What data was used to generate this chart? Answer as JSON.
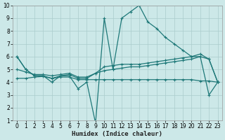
{
  "xlabel": "Humidex (Indice chaleur)",
  "bg_color": "#cce8e8",
  "grid_color": "#aacccc",
  "line_color": "#1e7878",
  "xlim": [
    -0.5,
    23.5
  ],
  "ylim": [
    1,
    10
  ],
  "xticks": [
    0,
    1,
    2,
    3,
    4,
    5,
    6,
    7,
    8,
    9,
    10,
    11,
    12,
    13,
    14,
    15,
    16,
    17,
    18,
    19,
    20,
    21,
    22,
    23
  ],
  "yticks": [
    1,
    2,
    3,
    4,
    5,
    6,
    7,
    8,
    9,
    10
  ],
  "line1_x": [
    0,
    1,
    2,
    3,
    4,
    5,
    6,
    7,
    8,
    9,
    10,
    11,
    12,
    13,
    14,
    15,
    16,
    17,
    18,
    19,
    20,
    21,
    22,
    23
  ],
  "line1_y": [
    6.0,
    5.0,
    4.5,
    4.5,
    4.0,
    4.5,
    4.5,
    3.5,
    4.0,
    0.8,
    9.0,
    5.0,
    9.0,
    9.5,
    10.0,
    8.7,
    8.2,
    7.5,
    7.0,
    6.5,
    6.0,
    6.0,
    3.0,
    4.0
  ],
  "line2_x": [
    0,
    1,
    2,
    3,
    4,
    5,
    6,
    7,
    8,
    9,
    10,
    11,
    12,
    13,
    14,
    15,
    16,
    17,
    18,
    19,
    20,
    21,
    22,
    23
  ],
  "line2_y": [
    6.0,
    5.0,
    4.5,
    4.5,
    4.3,
    4.5,
    4.6,
    4.3,
    4.3,
    4.7,
    5.2,
    5.3,
    5.4,
    5.4,
    5.4,
    5.5,
    5.6,
    5.7,
    5.8,
    5.9,
    6.0,
    6.2,
    5.8,
    4.0
  ],
  "line3_x": [
    0,
    1,
    2,
    3,
    4,
    5,
    6,
    7,
    8,
    9,
    10,
    11,
    12,
    13,
    14,
    15,
    16,
    17,
    18,
    19,
    20,
    21,
    22,
    23
  ],
  "line3_y": [
    5.0,
    4.8,
    4.6,
    4.6,
    4.5,
    4.6,
    4.7,
    4.4,
    4.4,
    4.7,
    4.9,
    5.0,
    5.1,
    5.2,
    5.2,
    5.3,
    5.4,
    5.5,
    5.6,
    5.7,
    5.8,
    6.0,
    5.8,
    4.0
  ],
  "line4_x": [
    0,
    1,
    2,
    3,
    4,
    5,
    6,
    7,
    8,
    9,
    10,
    11,
    12,
    13,
    14,
    15,
    16,
    17,
    18,
    19,
    20,
    21,
    22,
    23
  ],
  "line4_y": [
    4.3,
    4.3,
    4.4,
    4.45,
    4.3,
    4.4,
    4.4,
    4.2,
    4.2,
    4.2,
    4.2,
    4.2,
    4.2,
    4.2,
    4.2,
    4.2,
    4.2,
    4.2,
    4.2,
    4.2,
    4.2,
    4.1,
    4.1,
    4.0
  ],
  "tick_fontsize": 5.5,
  "xlabel_fontsize": 6.5
}
